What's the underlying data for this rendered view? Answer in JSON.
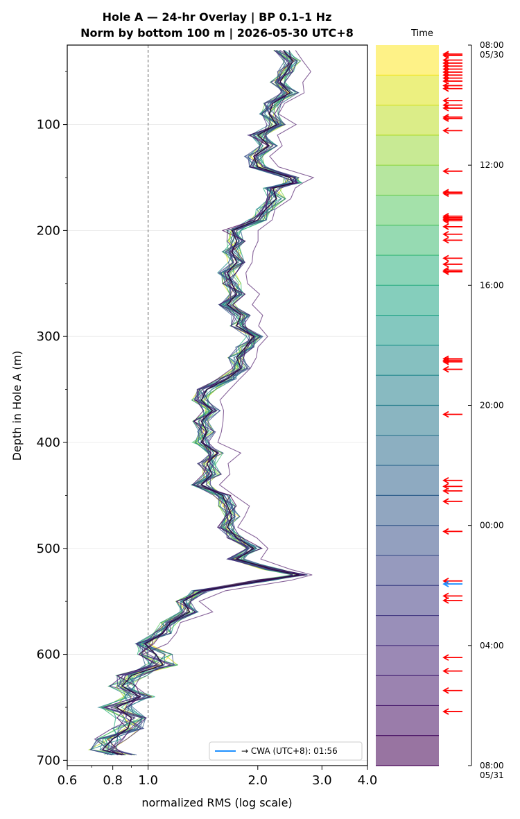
{
  "chart_data": {
    "type": "line",
    "title_line1": "Hole A — 24-hr Overlay  |  BP 0.1–1 Hz",
    "title_line2": "Norm by bottom 100 m  |  2026-05-30 UTC+8",
    "xlabel": "normalized RMS  (log scale)",
    "ylabel": "Depth in Hole A (m)",
    "xscale": "log",
    "xlim": [
      0.6,
      4.0
    ],
    "ylim": [
      705,
      25
    ],
    "x_ticks": [
      0.6,
      0.8,
      1.0,
      2.0,
      3.0,
      4.0
    ],
    "x_tick_labels": [
      "0.6",
      "0.8",
      "1.0",
      "2.0",
      "3.0",
      "4.0"
    ],
    "y_ticks": [
      100,
      200,
      300,
      400,
      500,
      600,
      700
    ],
    "y_tick_labels": [
      "100",
      "200",
      "300",
      "400",
      "500",
      "600",
      "700"
    ],
    "reference_line_x": 1.0,
    "grid": "horizontal",
    "legend": {
      "label": "→ CWA (UTC+8): 01:56",
      "color": "#1e90ff",
      "placement": "lower-right"
    },
    "profile_depths": [
      30,
      40,
      50,
      60,
      70,
      80,
      90,
      100,
      110,
      120,
      130,
      140,
      150,
      155,
      160,
      170,
      180,
      190,
      200,
      210,
      220,
      230,
      240,
      250,
      260,
      270,
      280,
      290,
      300,
      310,
      320,
      330,
      340,
      350,
      360,
      370,
      380,
      390,
      400,
      410,
      420,
      430,
      440,
      450,
      460,
      470,
      480,
      490,
      500,
      510,
      520,
      525,
      530,
      540,
      550,
      560,
      570,
      580,
      590,
      600,
      610,
      620,
      630,
      640,
      650,
      660,
      670,
      680,
      690,
      695
    ],
    "median_profile": [
      2.35,
      2.5,
      2.4,
      2.3,
      2.45,
      2.2,
      2.15,
      2.25,
      2.0,
      2.15,
      1.95,
      2.0,
      2.45,
      2.5,
      2.2,
      2.25,
      2.1,
      2.0,
      1.7,
      1.75,
      1.7,
      1.75,
      1.65,
      1.7,
      1.75,
      1.65,
      1.8,
      1.75,
      1.95,
      1.85,
      1.75,
      1.8,
      1.65,
      1.45,
      1.4,
      1.5,
      1.4,
      1.45,
      1.4,
      1.55,
      1.45,
      1.5,
      1.4,
      1.6,
      1.65,
      1.7,
      1.65,
      1.75,
      1.95,
      1.75,
      2.2,
      2.6,
      2.1,
      1.4,
      1.25,
      1.3,
      1.15,
      1.1,
      0.98,
      1.05,
      1.1,
      0.9,
      0.85,
      0.95,
      0.82,
      0.9,
      0.88,
      0.8,
      0.75,
      0.85
    ],
    "n_profiles": 24,
    "colorbar": {
      "label": "Time",
      "ticks": [
        "08:00\n05/30",
        "12:00",
        "16:00",
        "20:00",
        "00:00",
        "04:00",
        "08:00\n05/31"
      ],
      "colors": [
        "#fde725",
        "#dde318",
        "#bddf26",
        "#9bd93c",
        "#7ad151",
        "#5ac864",
        "#3fbc73",
        "#2cb17e",
        "#21a685",
        "#1f9a8a",
        "#228d8d",
        "#26828e",
        "#2a788e",
        "#2e6e8e",
        "#32648e",
        "#365c8d",
        "#3b528b",
        "#3f4788",
        "#433e85",
        "#46337f",
        "#482878",
        "#481d6f",
        "#471164",
        "#440154"
      ]
    },
    "event_arrows_hours": [
      0.3,
      0.35,
      0.5,
      0.6,
      0.7,
      0.8,
      0.9,
      1.0,
      1.1,
      1.2,
      1.35,
      1.45,
      1.85,
      2.0,
      2.1,
      2.4,
      2.45,
      2.85,
      4.2,
      4.9,
      4.95,
      5.7,
      5.75,
      5.8,
      5.85,
      6.05,
      6.3,
      6.5,
      7.1,
      7.3,
      7.5,
      7.55,
      10.45,
      10.5,
      10.55,
      10.8,
      12.3,
      14.5,
      14.7,
      14.85,
      15.2,
      16.2,
      17.85,
      18.35,
      18.5,
      20.4,
      20.85,
      21.5,
      22.2
    ],
    "highlight_arrow_hour": 17.95
  }
}
